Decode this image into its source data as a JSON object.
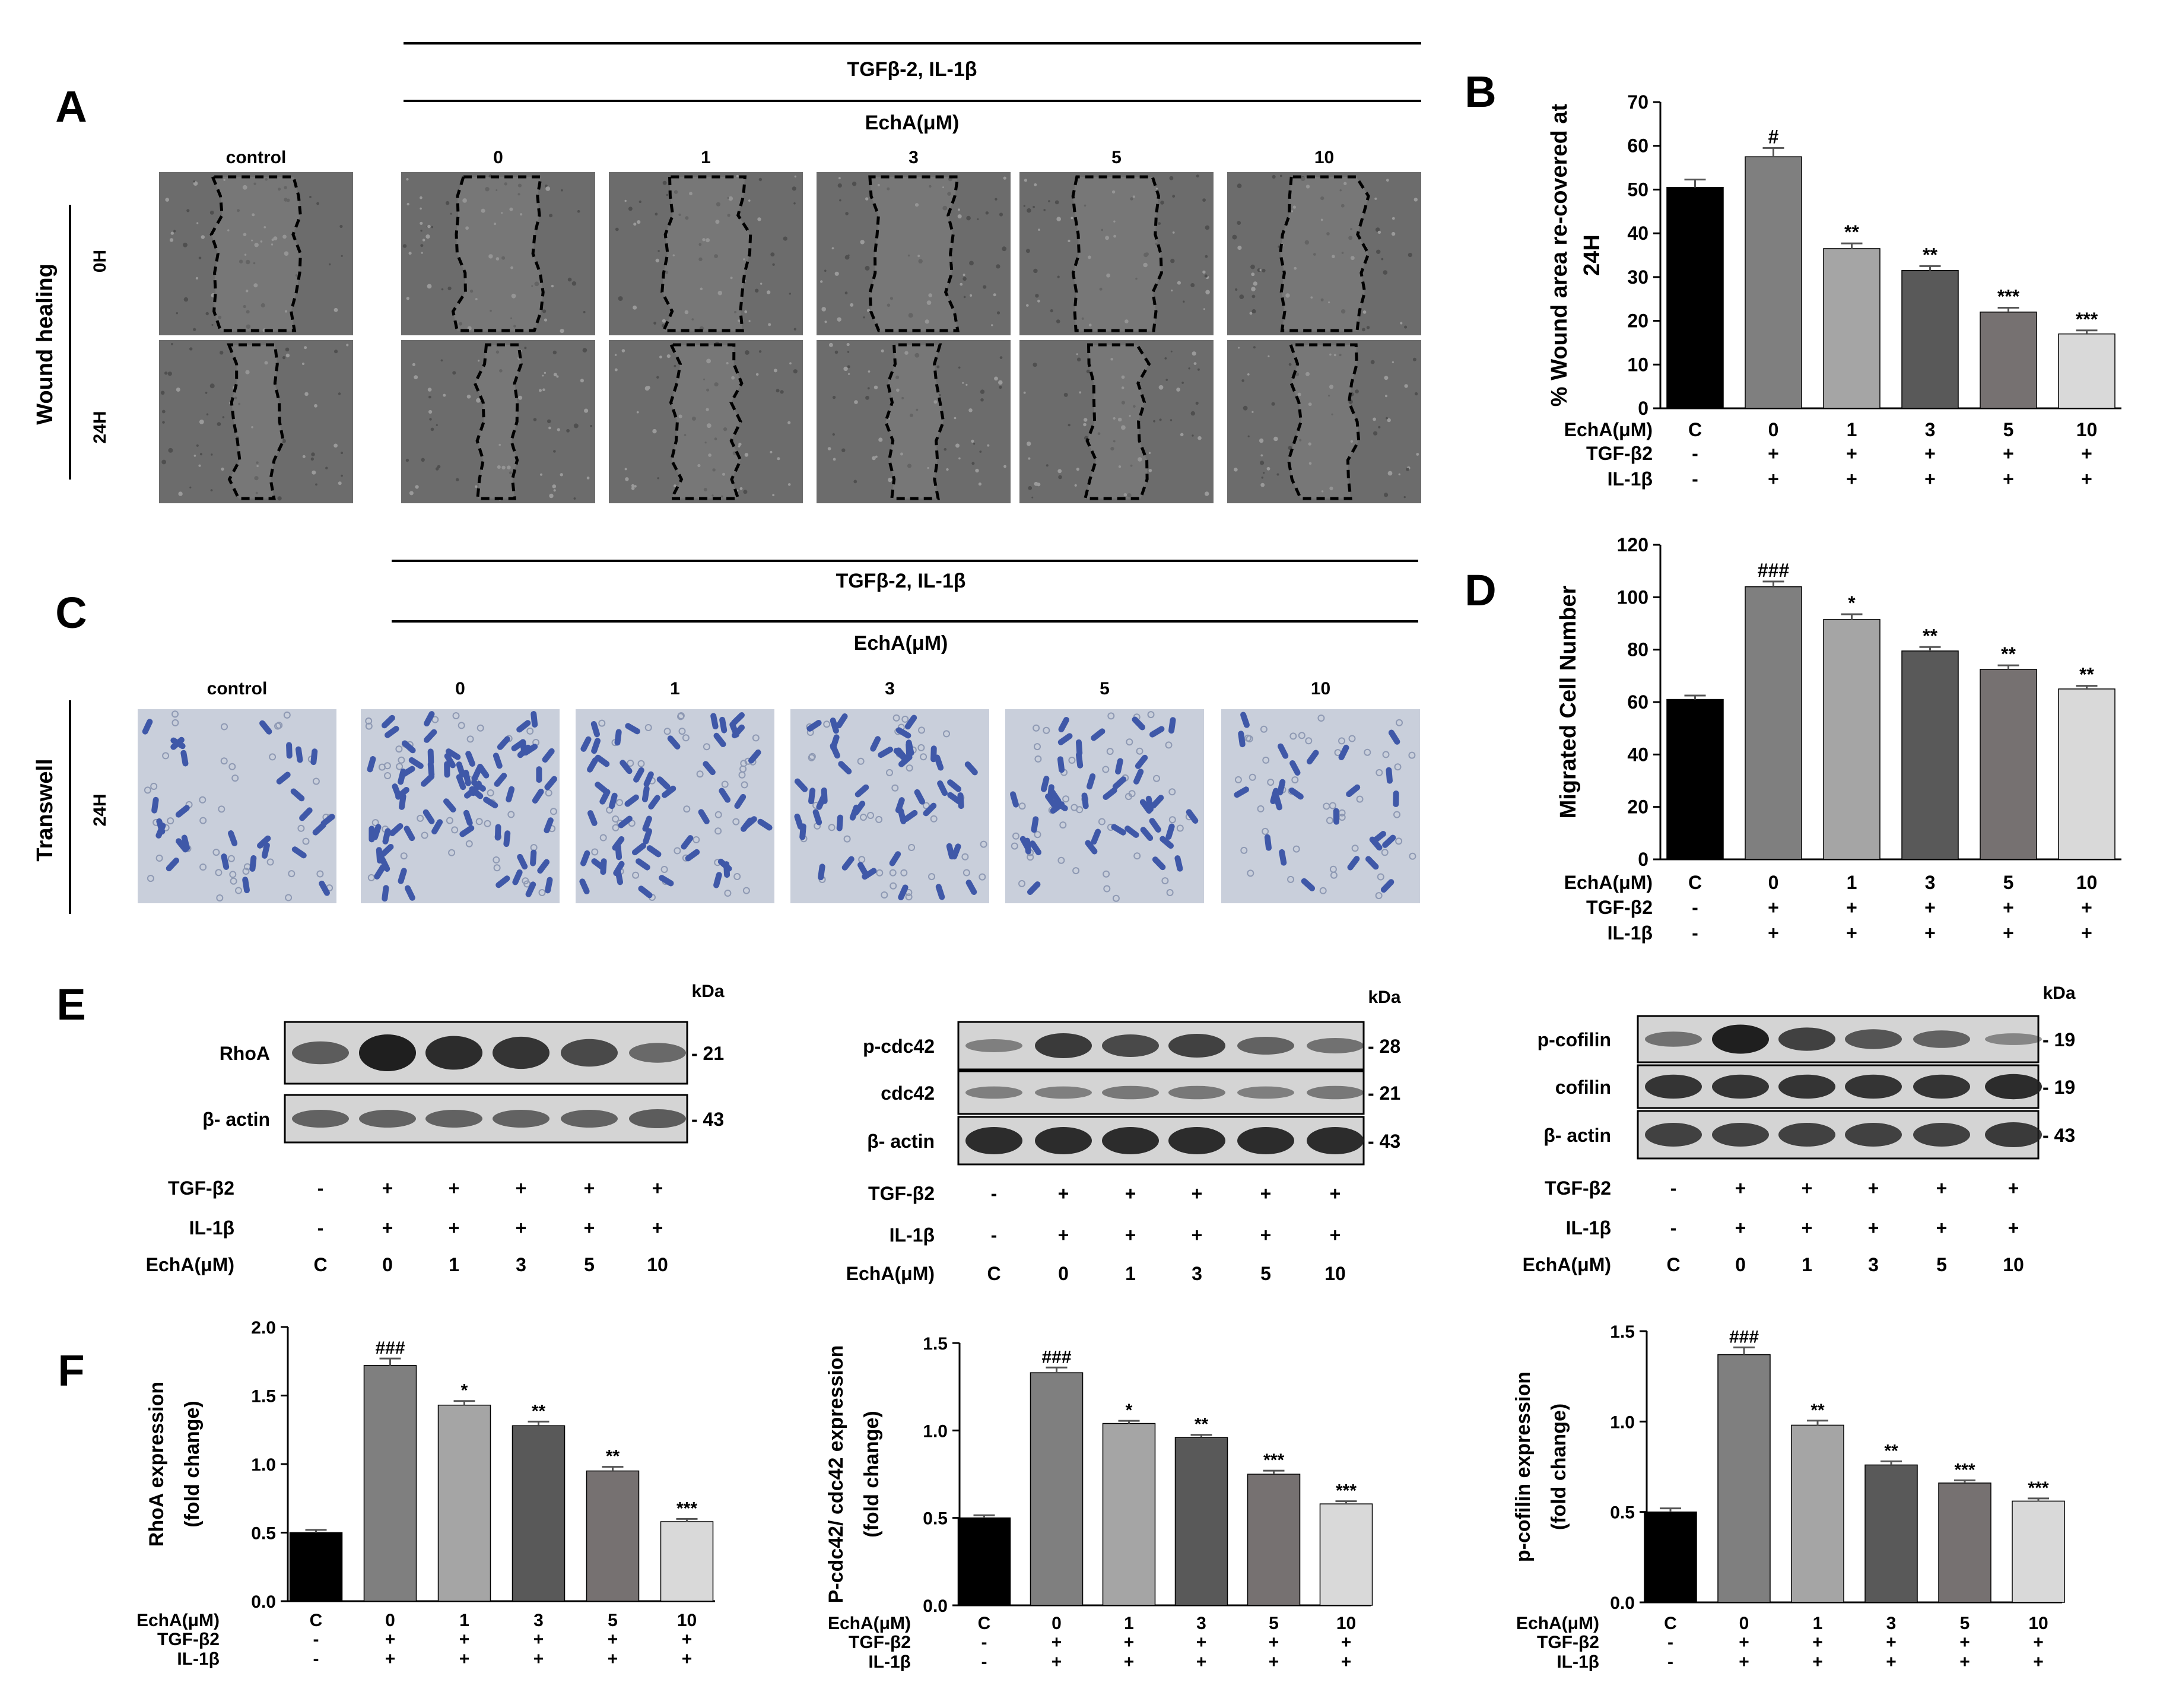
{
  "panel_labels": {
    "A": "A",
    "B": "B",
    "C": "C",
    "D": "D",
    "E": "E",
    "F": "F"
  },
  "colors": {
    "bars": [
      "#000000",
      "#7f7f7f",
      "#a5a5a5",
      "#595959",
      "#767171",
      "#d9d9d9"
    ],
    "wound_image": "#6c6c6c",
    "transwell_image": "#c9cfdb",
    "cell_stain": "#3f58a8",
    "blot_background": "#d4d4d4",
    "blot_band": "#1f1f1f"
  },
  "treatment": {
    "echa_label": "EchA(μM)",
    "tgf_label": "TGF-β2",
    "il_label": "IL-1β",
    "groups": [
      "C",
      "0",
      "1",
      "3",
      "5",
      "10"
    ],
    "tgf_signs": [
      "-",
      "+",
      "+",
      "+",
      "+",
      "+"
    ],
    "il_signs": [
      "-",
      "+",
      "+",
      "+",
      "+",
      "+"
    ]
  },
  "panel_a": {
    "top_label": "TGFβ-2, IL-1β",
    "echa_label": "EchA(μM)",
    "columns": [
      "control",
      "0",
      "1",
      "3",
      "5",
      "10"
    ],
    "side_label": "Wound healing",
    "rows": [
      "0H",
      "24H"
    ]
  },
  "panel_c": {
    "top_label": "TGFβ-2, IL-1β",
    "echa_label": "EchA(μM)",
    "columns": [
      "control",
      "0",
      "1",
      "3",
      "5",
      "10"
    ],
    "side_label": "Transwell",
    "row": "24H"
  },
  "panel_e": {
    "kda": "kDa",
    "blots": [
      {
        "rows": [
          {
            "label": "RhoA",
            "kda": "- 21",
            "intensity": [
              0.55,
              1.0,
              0.9,
              0.85,
              0.7,
              0.45
            ]
          },
          {
            "label": "β- actin",
            "kda": "- 43",
            "intensity": [
              0.5,
              0.5,
              0.5,
              0.5,
              0.5,
              0.55
            ]
          }
        ]
      },
      {
        "rows": [
          {
            "label": "p-cdc42",
            "kda": "- 28",
            "intensity": [
              0.3,
              0.8,
              0.7,
              0.75,
              0.5,
              0.4
            ]
          },
          {
            "label": "cdc42",
            "kda": "- 21",
            "intensity": [
              0.3,
              0.3,
              0.35,
              0.35,
              0.3,
              0.35
            ]
          },
          {
            "label": "β- actin",
            "kda": "- 43",
            "intensity": [
              0.9,
              0.9,
              0.9,
              0.9,
              0.9,
              0.9
            ]
          }
        ]
      },
      {
        "rows": [
          {
            "label": "p-cofilin",
            "kda": "- 19",
            "intensity": [
              0.4,
              1.0,
              0.75,
              0.6,
              0.5,
              0.25
            ]
          },
          {
            "label": "cofilin",
            "kda": "- 19",
            "intensity": [
              0.85,
              0.85,
              0.85,
              0.85,
              0.85,
              0.9
            ]
          },
          {
            "label": "β- actin",
            "kda": "- 43",
            "intensity": [
              0.75,
              0.75,
              0.75,
              0.75,
              0.75,
              0.8
            ]
          }
        ]
      }
    ]
  },
  "chart_data": [
    {
      "id": "B",
      "type": "bar",
      "categories": [
        "C",
        "0",
        "1",
        "3",
        "5",
        "10"
      ],
      "values": [
        50.5,
        57.5,
        36.5,
        31.5,
        22,
        17
      ],
      "errors": [
        1.8,
        2,
        1.2,
        1,
        1,
        0.8
      ],
      "annotations": [
        "",
        "#",
        "**",
        "**",
        "***",
        "***"
      ],
      "ylabel": "% Wound area re-covered at 24H",
      "ylabel_lines": [
        "% Wound area re-covered at",
        "24H"
      ],
      "ylim": [
        0,
        70
      ],
      "ticks": [
        0,
        10,
        20,
        30,
        40,
        50,
        60,
        70
      ],
      "tick_labels": [
        "0",
        "10",
        "20",
        "30",
        "40",
        "50",
        "60",
        "70"
      ]
    },
    {
      "id": "D",
      "type": "bar",
      "categories": [
        "C",
        "0",
        "1",
        "3",
        "5",
        "10"
      ],
      "values": [
        61,
        104,
        91.5,
        79.5,
        72.5,
        65
      ],
      "errors": [
        1.5,
        2,
        2,
        1.5,
        1.5,
        1.2
      ],
      "annotations": [
        "",
        "###",
        "*",
        "**",
        "**",
        "**"
      ],
      "ylabel": "Migrated Cell Number",
      "ylabel_lines": [
        "Migrated Cell Number"
      ],
      "ylim": [
        0,
        120
      ],
      "ticks": [
        0,
        20,
        40,
        60,
        80,
        100,
        120
      ],
      "tick_labels": [
        "0",
        "20",
        "40",
        "60",
        "80",
        "100",
        "120"
      ]
    },
    {
      "id": "F1",
      "type": "bar",
      "categories": [
        "C",
        "0",
        "1",
        "3",
        "5",
        "10"
      ],
      "values": [
        0.5,
        1.72,
        1.43,
        1.28,
        0.95,
        0.58
      ],
      "errors": [
        0.02,
        0.05,
        0.03,
        0.03,
        0.03,
        0.02
      ],
      "annotations": [
        "",
        "###",
        "*",
        "**",
        "**",
        "***"
      ],
      "ylabel": "RhoA expression (fold change)",
      "ylabel_lines": [
        "RhoA expression",
        "(fold change)"
      ],
      "ylim": [
        0,
        2.0
      ],
      "ticks": [
        0,
        0.5,
        1.0,
        1.5,
        2.0
      ],
      "tick_labels": [
        "0.0",
        "0.5",
        "1.0",
        "1.5",
        "2.0"
      ]
    },
    {
      "id": "F2",
      "type": "bar",
      "categories": [
        "C",
        "0",
        "1",
        "3",
        "5",
        "10"
      ],
      "values": [
        0.5,
        1.33,
        1.04,
        0.96,
        0.75,
        0.58
      ],
      "errors": [
        0.015,
        0.03,
        0.015,
        0.015,
        0.02,
        0.015
      ],
      "annotations": [
        "",
        "###",
        "*",
        "**",
        "***",
        "***"
      ],
      "ylabel": "P-cdc42/ cdc42 expression (fold change)",
      "ylabel_lines": [
        "P-cdc42/ cdc42 expression",
        "(fold change)"
      ],
      "ylim": [
        0,
        1.5
      ],
      "ticks": [
        0,
        0.5,
        1.0,
        1.5
      ],
      "tick_labels": [
        "0.0",
        "0.5",
        "1.0",
        "1.5"
      ]
    },
    {
      "id": "F3",
      "type": "bar",
      "categories": [
        "C",
        "0",
        "1",
        "3",
        "5",
        "10"
      ],
      "values": [
        0.5,
        1.37,
        0.98,
        0.76,
        0.66,
        0.56
      ],
      "errors": [
        0.02,
        0.04,
        0.025,
        0.02,
        0.015,
        0.015
      ],
      "annotations": [
        "",
        "###",
        "**",
        "**",
        "***",
        "***"
      ],
      "ylabel": "p-cofilin expression (fold change)",
      "ylabel_lines": [
        "p-cofilin expression",
        "(fold change)"
      ],
      "ylim": [
        0,
        1.5
      ],
      "ticks": [
        0,
        0.5,
        1.0,
        1.5
      ],
      "tick_labels": [
        "0.0",
        "0.5",
        "1.0",
        "1.5"
      ]
    }
  ]
}
